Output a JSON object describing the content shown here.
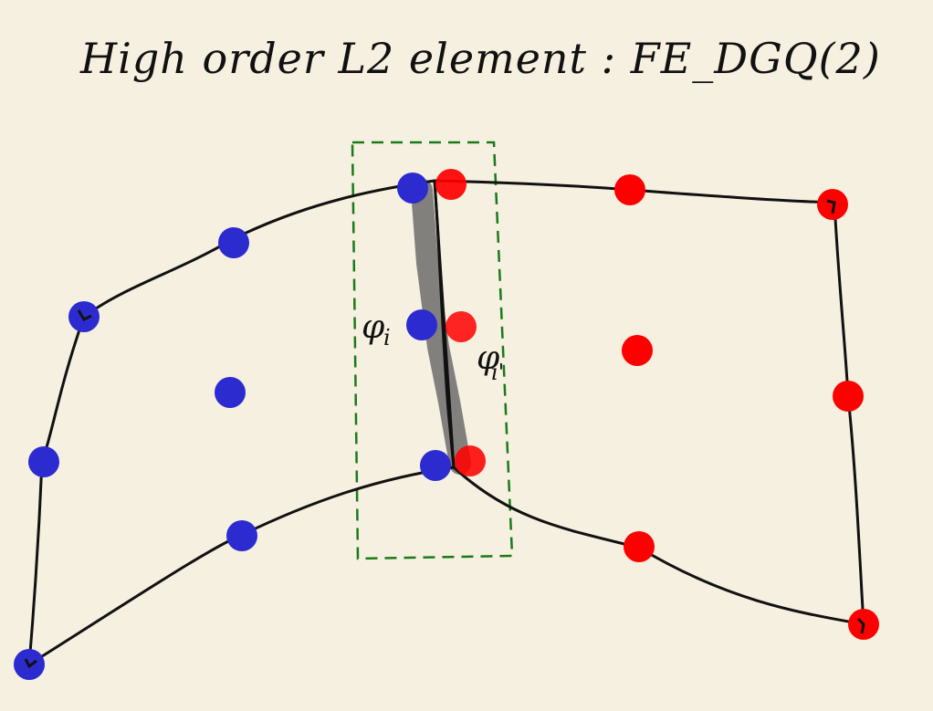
{
  "title": "High order L2 element :  FE_DGQ(2)",
  "labels": {
    "phi_i": "φ",
    "phi_i_sub": "i",
    "phi_i_prime": "φ",
    "phi_i_prime_sub": "i'"
  },
  "colors": {
    "background": "#f6f0e0",
    "outline": "#111111",
    "left_element_dofs": "#2b2bd0",
    "right_element_dofs": "#ff0000",
    "shared_face_highlight": "#555555",
    "face_box": "#1a7a1a"
  }
}
